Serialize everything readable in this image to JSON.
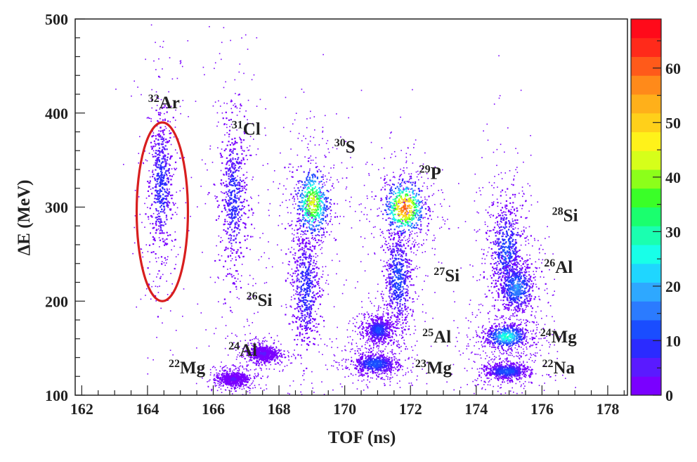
{
  "chart_data": {
    "type": "heatmap",
    "title": "",
    "xlabel": "TOF (ns)",
    "ylabel": "ΔE (MeV)",
    "xlim": [
      161.8,
      178.6
    ],
    "ylim": [
      100,
      500
    ],
    "x_ticks": [
      "162",
      "164",
      "166",
      "168",
      "170",
      "172",
      "174",
      "176",
      "178"
    ],
    "y_ticks": [
      "100",
      "200",
      "300",
      "400",
      "500"
    ],
    "colorbar": {
      "range": [
        0,
        69
      ],
      "ticks": [
        "0",
        "10",
        "20",
        "30",
        "40",
        "50",
        "60"
      ],
      "colors": [
        "#7a00ff",
        "#5a1aff",
        "#2b2bff",
        "#1a4dff",
        "#2b7bff",
        "#2ea8ff",
        "#1fd6ff",
        "#18ffe8",
        "#1affb0",
        "#1aff6e",
        "#3aff28",
        "#8cff1a",
        "#d6ff1a",
        "#fff21a",
        "#ffd01a",
        "#ffb01a",
        "#ff8a1a",
        "#ff5a1a",
        "#ff2a1a",
        "#ff0a1a"
      ]
    },
    "series": [
      {
        "name": "32Ar",
        "x": 164.4,
        "y": 325,
        "sx": 0.18,
        "sy": 35,
        "peak": 10
      },
      {
        "name": "31Cl",
        "x": 166.6,
        "y": 310,
        "sx": 0.2,
        "sy": 38,
        "peak": 9
      },
      {
        "name": "30S",
        "x": 169.0,
        "y": 305,
        "sx": 0.25,
        "sy": 18,
        "peak": 45
      },
      {
        "name": "29P",
        "x": 171.8,
        "y": 300,
        "sx": 0.3,
        "sy": 14,
        "peak": 60
      },
      {
        "name": "28Si",
        "x": 174.9,
        "y": 255,
        "sx": 0.25,
        "sy": 25,
        "peak": 12
      },
      {
        "name": "27Si",
        "x": 171.6,
        "y": 225,
        "sx": 0.2,
        "sy": 25,
        "peak": 12
      },
      {
        "name": "26Al",
        "x": 175.2,
        "y": 215,
        "sx": 0.25,
        "sy": 12,
        "peak": 18
      },
      {
        "name": "26Si",
        "x": 168.8,
        "y": 215,
        "sx": 0.2,
        "sy": 30,
        "peak": 10
      },
      {
        "name": "25Al",
        "x": 171.0,
        "y": 170,
        "sx": 0.2,
        "sy": 6,
        "peak": 12
      },
      {
        "name": "24Mg",
        "x": 174.9,
        "y": 163,
        "sx": 0.3,
        "sy": 6,
        "peak": 28
      },
      {
        "name": "24Al",
        "x": 167.5,
        "y": 145,
        "sx": 0.2,
        "sy": 4,
        "peak": 4
      },
      {
        "name": "23Mg",
        "x": 170.9,
        "y": 134,
        "sx": 0.3,
        "sy": 5,
        "peak": 14
      },
      {
        "name": "22Na",
        "x": 174.9,
        "y": 126,
        "sx": 0.3,
        "sy": 4,
        "peak": 14
      },
      {
        "name": "22Mg",
        "x": 166.6,
        "y": 118,
        "sx": 0.2,
        "sy": 3,
        "peak": 4
      }
    ],
    "annotations": [
      {
        "mass": "32",
        "symbol": "Ar",
        "x": 164.5,
        "y": 405
      },
      {
        "mass": "31",
        "symbol": "Cl",
        "x": 167.0,
        "y": 377
      },
      {
        "mass": "30",
        "symbol": "S",
        "x": 170.0,
        "y": 358
      },
      {
        "mass": "29",
        "symbol": "P",
        "x": 172.6,
        "y": 330
      },
      {
        "mass": "28",
        "symbol": "Si",
        "x": 176.7,
        "y": 285
      },
      {
        "mass": "27",
        "symbol": "Si",
        "x": 173.1,
        "y": 221
      },
      {
        "mass": "26",
        "symbol": "Al",
        "x": 176.5,
        "y": 230
      },
      {
        "mass": "26",
        "symbol": "Si",
        "x": 167.4,
        "y": 195
      },
      {
        "mass": "25",
        "symbol": "Al",
        "x": 172.8,
        "y": 156
      },
      {
        "mass": "24",
        "symbol": "Mg",
        "x": 176.5,
        "y": 156
      },
      {
        "mass": "24",
        "symbol": "Al",
        "x": 166.9,
        "y": 142
      },
      {
        "mass": "23",
        "symbol": "Mg",
        "x": 172.7,
        "y": 123
      },
      {
        "mass": "22",
        "symbol": "Na",
        "x": 176.5,
        "y": 123
      },
      {
        "mass": "22",
        "symbol": "Mg",
        "x": 165.2,
        "y": 123
      }
    ],
    "highlight_ellipse": {
      "label": "32Ar",
      "cx": 164.45,
      "cy": 295,
      "rx": 0.78,
      "ry": 95,
      "color": "#d81e1e"
    }
  }
}
